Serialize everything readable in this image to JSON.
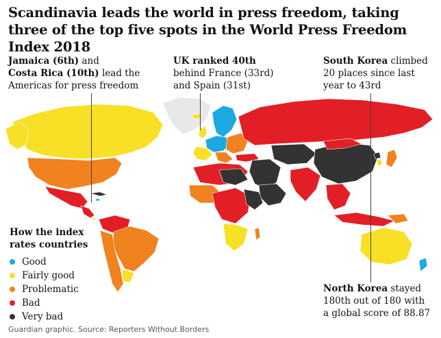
{
  "title": "Scandinavia leads the world in press freedom, taking three of the top five spots in the World Press Freedom Index 2018",
  "annotations": {
    "americas": {
      "bold1": "Jamaica (6th)",
      "plain1": " and",
      "bold2": "Costa Rica (10th)",
      "plain2": " lead the",
      "line3": "Americas for press freedom"
    },
    "uk": {
      "bold": "UK ranked 40th",
      "line2": "behind France (33rd)",
      "line3": "and Spain (31st)"
    },
    "south_korea": {
      "bold": "South Korea",
      "plain": " climbed",
      "line2": "20 places since last",
      "line3": "year to 43rd"
    },
    "north_korea": {
      "bold": "North Korea",
      "plain": " stayed",
      "line2": "180th out of 180 with",
      "line3": "a global score of 88.87"
    }
  },
  "legend": {
    "title_line1": "How the index",
    "title_line2": "rates countries",
    "items": [
      {
        "label": "Good",
        "color": "#1ba9e3"
      },
      {
        "label": "Fairly good",
        "color": "#f7e025"
      },
      {
        "label": "Problematic",
        "color": "#f08220"
      },
      {
        "label": "Bad",
        "color": "#e21f26"
      },
      {
        "label": "Very bad",
        "color": "#333333"
      }
    ]
  },
  "colors": {
    "no_data": "#e8e8e8",
    "border": "#ffffff"
  },
  "source": "Guardian graphic. Source: Reporters Without Borders"
}
